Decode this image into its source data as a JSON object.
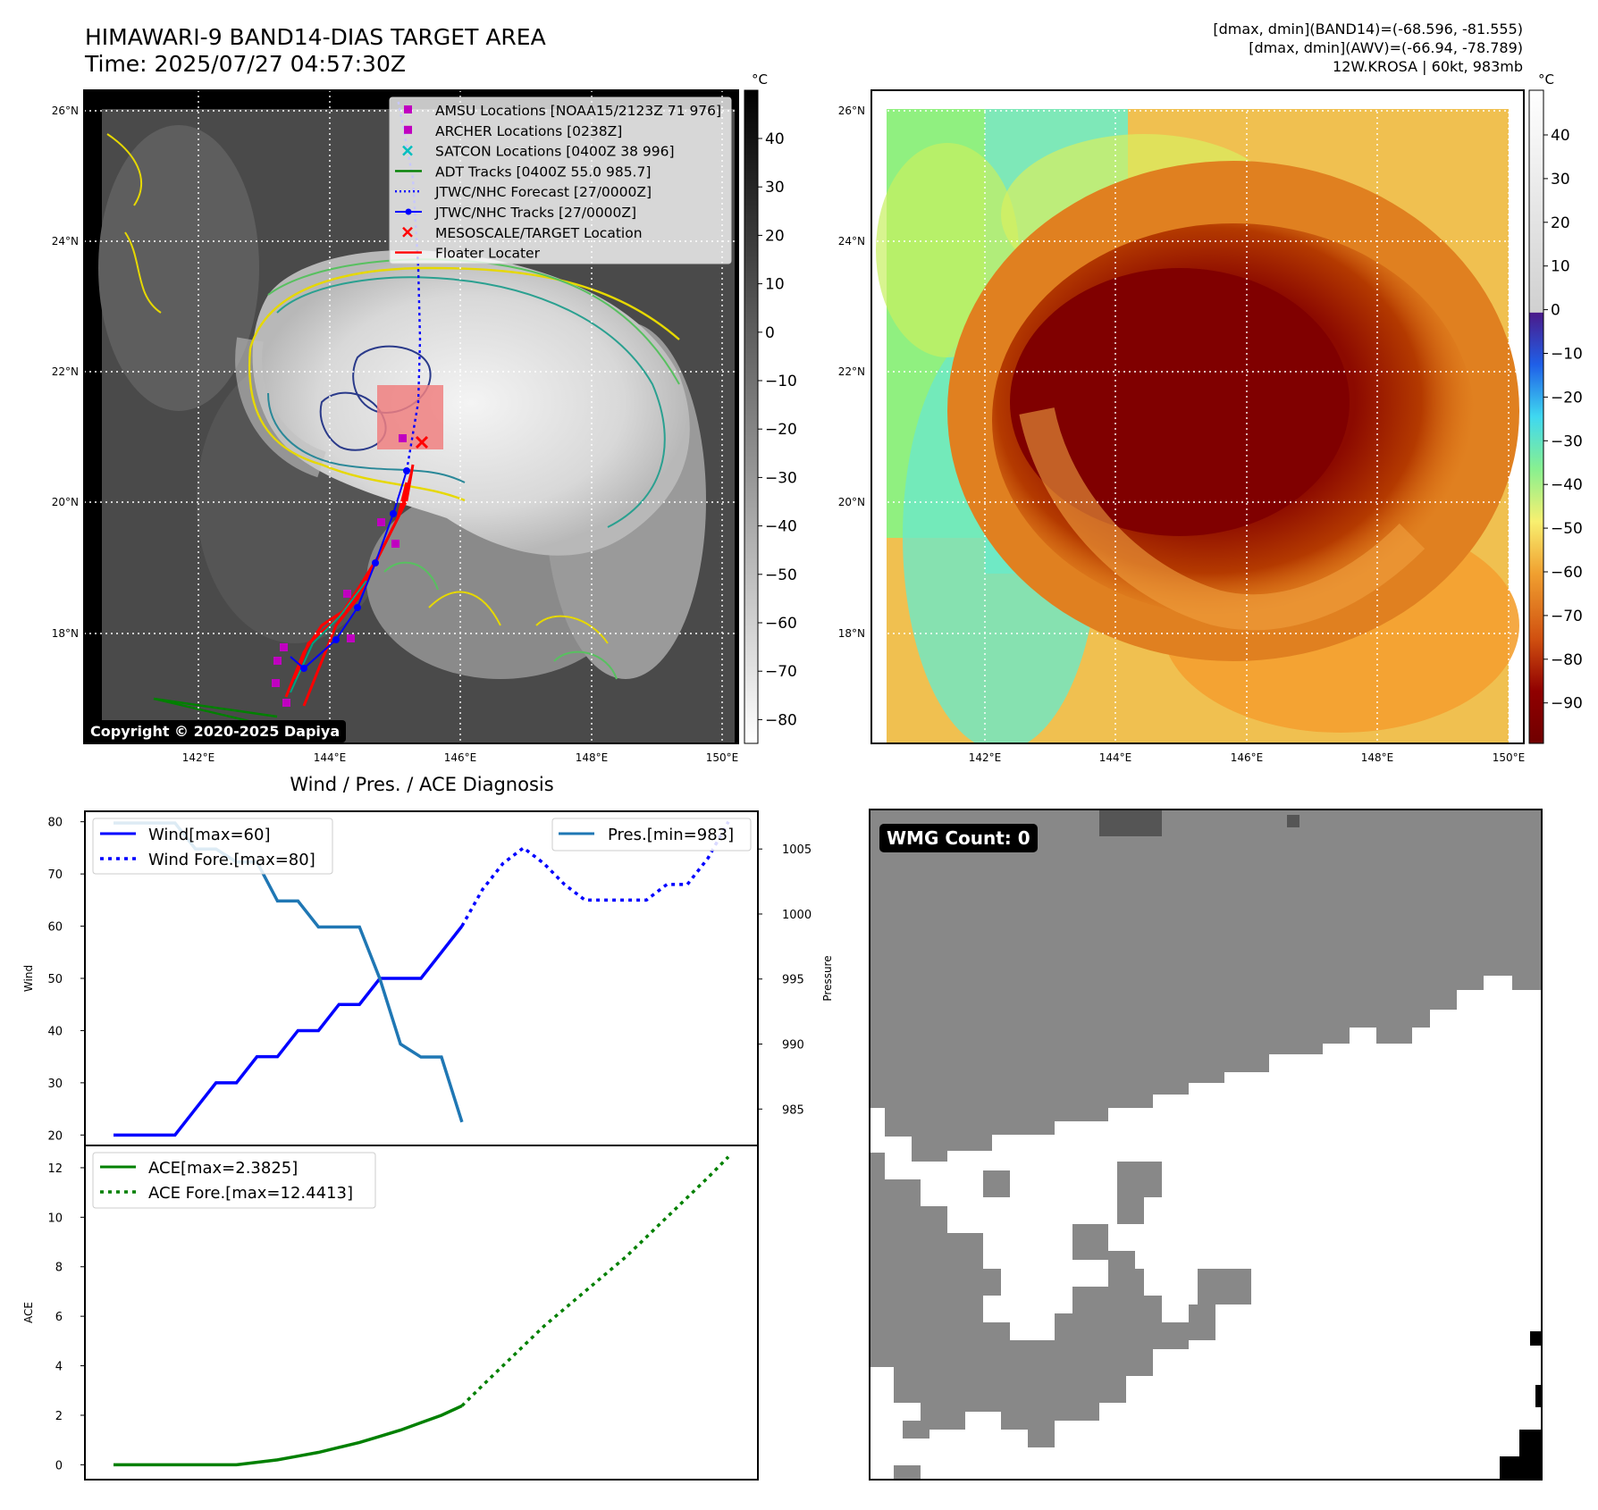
{
  "header": {
    "title": "HIMAWARI-9 BAND14-DIAS TARGET AREA",
    "time": "Time: 2025/07/27 04:57:30Z",
    "stats_band14": "[dmax, dmin](BAND14)=(-68.596, -81.555)",
    "stats_awv": "[dmax, dmin](AWV)=(-66.94, -78.789)",
    "storm_info": "12W.KROSA | 60kt, 983mb"
  },
  "map": {
    "lon_ticks": [
      "142°E",
      "144°E",
      "146°E",
      "148°E",
      "150°E"
    ],
    "lat_ticks": [
      "26°N",
      "24°N",
      "22°N",
      "20°N",
      "18°N"
    ],
    "copyright": "Copyright © 2020-2025 Dapiya",
    "legend": [
      {
        "label": "AMSU Locations [NOAA15/2123Z 71 976]",
        "marker": "square",
        "color": "#c000c0"
      },
      {
        "label": "ARCHER Locations [0238Z]",
        "marker": "square",
        "color": "#c000c0"
      },
      {
        "label": "SATCON Locations [0400Z 38 996]",
        "marker": "x",
        "color": "#00bfbf"
      },
      {
        "label": "ADT Tracks [0400Z 55.0 985.7]",
        "marker": "line",
        "color": "#008000"
      },
      {
        "label": "JTWC/NHC Forecast [27/0000Z]",
        "marker": "dotted",
        "color": "#0000ff"
      },
      {
        "label": "JTWC/NHC Tracks [27/0000Z]",
        "marker": "line-dot",
        "color": "#0000ff"
      },
      {
        "label": "MESOSCALE/TARGET Location",
        "marker": "x",
        "color": "#ff0000"
      },
      {
        "label": "Floater Locater",
        "marker": "line",
        "color": "#ff0000"
      }
    ],
    "colorbar_left": {
      "unit": "°C",
      "ticks": [
        "40",
        "30",
        "20",
        "10",
        "0",
        "−10",
        "−20",
        "−30",
        "−40",
        "−50",
        "−60",
        "−70",
        "−80"
      ]
    },
    "colorbar_right": {
      "unit": "°C",
      "ticks": [
        "40",
        "30",
        "20",
        "10",
        "0",
        "−10",
        "−20",
        "−30",
        "−40",
        "−50",
        "−60",
        "−70",
        "−80",
        "−90"
      ]
    }
  },
  "colors": {
    "wind": "#0000ff",
    "pressure": "#1f77b4",
    "ace": "#008000",
    "red": "#ff0000",
    "magenta": "#c000c0",
    "cyan": "#00bfbf"
  },
  "chart_data": [
    {
      "type": "line",
      "title": "Wind / Pres. / ACE Diagnosis",
      "ylabel": "Wind",
      "y2label": "Pressure",
      "ylim": [
        18,
        82
      ],
      "y2lim": [
        982.2,
        1007.9
      ],
      "yticks": [
        20,
        30,
        40,
        50,
        60,
        70,
        80
      ],
      "y2ticks": [
        985,
        990,
        995,
        1000,
        1005
      ],
      "x": [
        0,
        1,
        2,
        3,
        4,
        5,
        6,
        7,
        8,
        9,
        10,
        11,
        12,
        13,
        14,
        15,
        16,
        17
      ],
      "series": [
        {
          "name": "Wind[max=60]",
          "axis": "left",
          "style": "solid",
          "color": "#0000ff",
          "values": [
            20,
            20,
            20,
            20,
            25,
            30,
            30,
            35,
            35,
            40,
            40,
            45,
            45,
            50,
            50,
            50,
            55,
            60
          ]
        },
        {
          "name": "Pres.[min=983]",
          "axis": "right",
          "style": "solid",
          "color": "#1f77b4",
          "values": [
            1007,
            1007,
            1007,
            1007,
            1005,
            1005,
            1004,
            1004,
            1001,
            1001,
            999,
            999,
            999,
            995,
            990,
            989,
            989,
            984
          ]
        },
        {
          "name": "Wind Fore.[max=80]",
          "axis": "left",
          "style": "dotted",
          "color": "#0000ff",
          "x": [
            17,
            18,
            19,
            20,
            21,
            22,
            23,
            24,
            25,
            26,
            27,
            28,
            29,
            30
          ],
          "values": [
            60,
            67,
            72,
            75,
            72,
            68,
            65,
            65,
            65,
            65,
            68,
            68,
            73,
            80
          ]
        }
      ]
    },
    {
      "type": "line",
      "ylabel": "ACE",
      "ylim": [
        -0.6,
        12.9
      ],
      "yticks": [
        0,
        2,
        4,
        6,
        8,
        10,
        12
      ],
      "series": [
        {
          "name": "ACE[max=2.3825]",
          "style": "solid",
          "color": "#008000",
          "x": [
            0,
            2,
            4,
            6,
            7,
            8,
            9,
            10,
            11,
            12,
            13,
            14,
            15,
            16,
            17
          ],
          "values": [
            0,
            0,
            0,
            0,
            0.1,
            0.2,
            0.35,
            0.5,
            0.7,
            0.9,
            1.15,
            1.4,
            1.7,
            2.0,
            2.38
          ]
        },
        {
          "name": "ACE Fore.[max=12.4413]",
          "style": "dotted",
          "color": "#008000",
          "x": [
            17,
            18,
            19,
            20,
            21,
            22,
            23,
            24,
            25,
            26,
            27,
            28,
            29,
            30
          ],
          "values": [
            2.38,
            3.2,
            4.0,
            4.8,
            5.6,
            6.3,
            7.0,
            7.7,
            8.4,
            9.2,
            10.0,
            10.8,
            11.6,
            12.44
          ]
        }
      ]
    }
  ],
  "wmg": {
    "label": "WMG Count: 0"
  }
}
